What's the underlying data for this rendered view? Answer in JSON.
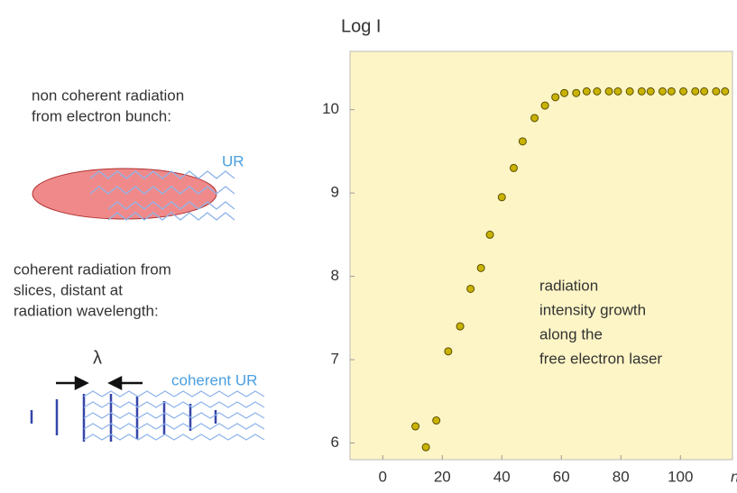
{
  "chart_data": {
    "type": "scatter",
    "y_label": "Log I",
    "x_label": "n",
    "x": [
      11,
      14.5,
      18,
      22,
      26,
      29.5,
      33,
      36,
      40,
      44,
      47,
      51,
      54.5,
      58,
      61,
      65,
      68.5,
      72,
      76,
      79,
      83,
      87,
      90,
      94,
      97,
      101,
      105,
      108,
      112,
      115
    ],
    "values": [
      6.2,
      5.95,
      6.27,
      7.1,
      7.4,
      7.85,
      8.1,
      8.5,
      8.95,
      9.3,
      9.62,
      9.9,
      10.05,
      10.15,
      10.2,
      10.2,
      10.22,
      10.22,
      10.22,
      10.22,
      10.22,
      10.22,
      10.22,
      10.22,
      10.22,
      10.22,
      10.22,
      10.22,
      10.22,
      10.22
    ],
    "color": "#c9b300",
    "xlim": [
      -11,
      117.5
    ],
    "ylim": [
      5.8,
      10.7
    ],
    "xticks": [
      0,
      20,
      40,
      60,
      80,
      100
    ],
    "yticks": [
      6,
      7,
      8,
      9,
      10
    ],
    "annotation": [
      "radiation",
      "intensity growth",
      "along the",
      "free electron laser"
    ]
  },
  "diagram": {
    "incoherent": [
      "non coherent radiation",
      "from electron bunch:"
    ],
    "ur": "UR",
    "coherent": [
      "coherent radiation from",
      "slices, distant at",
      "radiation wavelength:"
    ],
    "lambda": "λ",
    "coherent_ur": "coherent UR"
  }
}
